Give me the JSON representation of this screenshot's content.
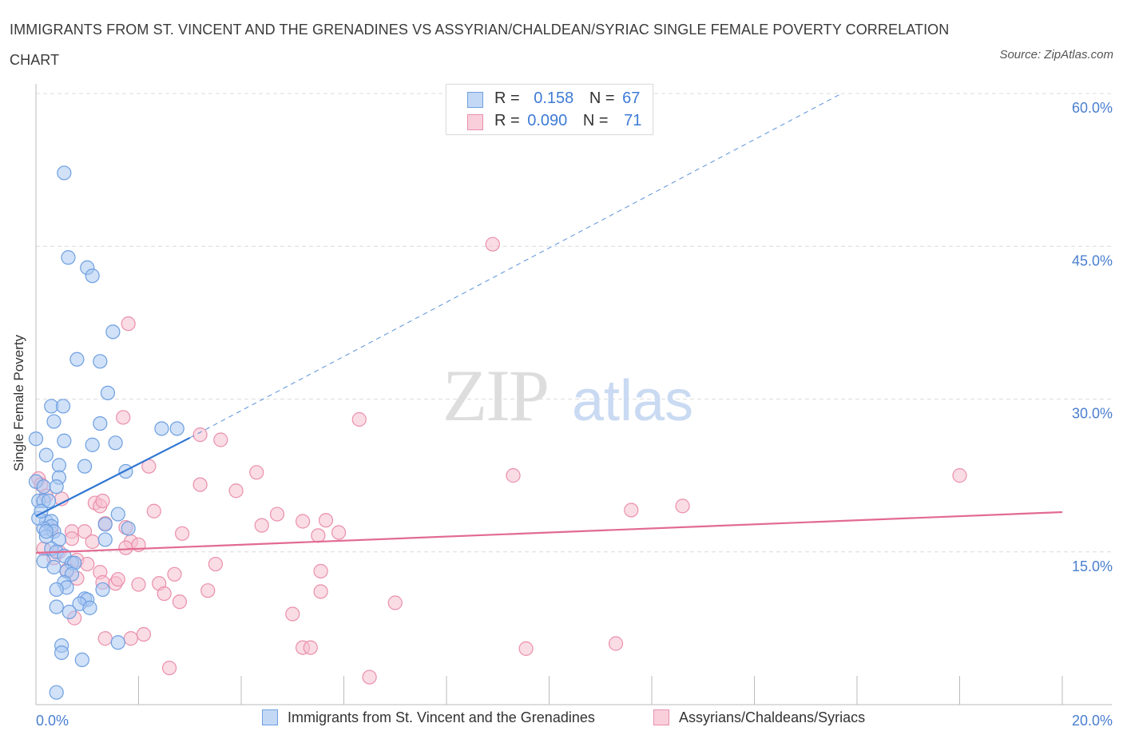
{
  "title": "IMMIGRANTS FROM ST. VINCENT AND THE GRENADINES VS ASSYRIAN/CHALDEAN/SYRIAC SINGLE FEMALE POVERTY CORRELATION CHART",
  "source": "Source: ZipAtlas.com",
  "watermark": {
    "zip": "ZIP",
    "atlas": "atlas"
  },
  "colors": {
    "blue_fill": "#aac8f2",
    "blue_stroke": "#6e9fe0",
    "blue_line": "#2f76d2",
    "pink_fill": "#f6bfd0",
    "pink_stroke": "#ea8fab",
    "pink_line": "#e26a93",
    "grid": "#dcdcdc",
    "tick_label": "#4a7fd0"
  },
  "legend_top": {
    "rows": [
      {
        "r_label": "R =",
        "r_value": "0.158",
        "n_label": "N =",
        "n_value": "67"
      },
      {
        "r_label": "R =",
        "r_value": "0.090",
        "n_label": "N =",
        "n_value": "71"
      }
    ]
  },
  "legend_bottom": [
    "Immigrants from St. Vincent and the Grenadines",
    "Assyrians/Chaldeans/Syriacs"
  ],
  "chart_data": {
    "type": "scatter",
    "title": "IMMIGRANTS FROM ST. VINCENT AND THE GRENADINES VS ASSYRIAN/CHALDEAN/SYRIAC SINGLE FEMALE POVERTY CORRELATION CHART",
    "xlabel": "",
    "ylabel": "Single Female Poverty",
    "xlim": [
      0,
      20
    ],
    "ylim": [
      0,
      60
    ],
    "x_tick_labels": [
      "0.0%",
      "20.0%"
    ],
    "y_ticks": [
      15,
      30,
      45,
      60
    ],
    "y_tick_labels": [
      "15.0%",
      "30.0%",
      "45.0%",
      "60.0%"
    ],
    "grid": true,
    "legend_position": "top-center",
    "series": [
      {
        "name": "Immigrants from St. Vincent and the Grenadines",
        "color": "#aac8f2",
        "r": 0.158,
        "n": 67,
        "trend": {
          "x0": 0.0,
          "y0": 18.5,
          "x1": 3.0,
          "y1": 26.2,
          "dashed_to_x": 15.7,
          "dashed_to_y": 60.0
        },
        "points": [
          [
            0.55,
            52.2
          ],
          [
            0.63,
            43.9
          ],
          [
            1.0,
            42.9
          ],
          [
            1.1,
            42.1
          ],
          [
            1.5,
            36.6
          ],
          [
            0.8,
            33.9
          ],
          [
            1.25,
            33.7
          ],
          [
            1.4,
            30.6
          ],
          [
            0.3,
            29.3
          ],
          [
            0.53,
            29.3
          ],
          [
            0.35,
            27.8
          ],
          [
            1.25,
            27.6
          ],
          [
            2.45,
            27.1
          ],
          [
            2.75,
            27.1
          ],
          [
            0.0,
            26.1
          ],
          [
            0.55,
            25.9
          ],
          [
            1.1,
            25.5
          ],
          [
            1.55,
            25.7
          ],
          [
            0.2,
            24.5
          ],
          [
            0.45,
            23.5
          ],
          [
            0.95,
            23.4
          ],
          [
            1.75,
            22.9
          ],
          [
            0.0,
            21.9
          ],
          [
            0.45,
            22.3
          ],
          [
            0.15,
            21.4
          ],
          [
            0.4,
            21.4
          ],
          [
            0.05,
            20.0
          ],
          [
            0.15,
            20.0
          ],
          [
            0.25,
            20.0
          ],
          [
            1.6,
            18.7
          ],
          [
            0.2,
            18.0
          ],
          [
            0.3,
            18.0
          ],
          [
            0.3,
            17.5
          ],
          [
            1.35,
            17.7
          ],
          [
            0.15,
            17.3
          ],
          [
            0.35,
            17.0
          ],
          [
            1.8,
            17.3
          ],
          [
            0.2,
            16.5
          ],
          [
            0.45,
            16.2
          ],
          [
            1.35,
            16.2
          ],
          [
            0.3,
            15.3
          ],
          [
            0.4,
            15.0
          ],
          [
            0.55,
            14.6
          ],
          [
            0.15,
            14.1
          ],
          [
            0.7,
            13.9
          ],
          [
            0.75,
            13.9
          ],
          [
            0.35,
            13.5
          ],
          [
            0.6,
            13.1
          ],
          [
            0.7,
            12.8
          ],
          [
            0.55,
            12.0
          ],
          [
            0.6,
            11.5
          ],
          [
            0.4,
            11.3
          ],
          [
            1.3,
            11.3
          ],
          [
            0.95,
            10.4
          ],
          [
            1.0,
            10.3
          ],
          [
            0.85,
            9.9
          ],
          [
            1.05,
            9.5
          ],
          [
            0.4,
            9.6
          ],
          [
            0.65,
            9.1
          ],
          [
            1.6,
            6.1
          ],
          [
            0.5,
            5.8
          ],
          [
            0.5,
            5.1
          ],
          [
            0.9,
            4.4
          ],
          [
            0.4,
            1.2
          ],
          [
            0.05,
            18.3
          ],
          [
            0.1,
            19.0
          ],
          [
            0.2,
            17.0
          ]
        ]
      },
      {
        "name": "Assyrians/Chaldeans/Syriacs",
        "color": "#f6bfd0",
        "r": 0.09,
        "n": 71,
        "trend": {
          "x0": 0.0,
          "y0": 14.9,
          "x1": 20.0,
          "y1": 18.9
        },
        "points": [
          [
            8.9,
            45.2
          ],
          [
            1.8,
            37.4
          ],
          [
            1.7,
            28.2
          ],
          [
            6.3,
            28.0
          ],
          [
            3.2,
            26.5
          ],
          [
            3.6,
            26.0
          ],
          [
            2.2,
            23.4
          ],
          [
            4.3,
            22.8
          ],
          [
            9.3,
            22.5
          ],
          [
            18.0,
            22.5
          ],
          [
            0.05,
            22.2
          ],
          [
            0.1,
            21.6
          ],
          [
            3.2,
            21.6
          ],
          [
            3.9,
            21.0
          ],
          [
            0.2,
            20.5
          ],
          [
            0.5,
            20.2
          ],
          [
            1.15,
            19.8
          ],
          [
            1.25,
            19.5
          ],
          [
            1.3,
            20.0
          ],
          [
            2.3,
            19.0
          ],
          [
            11.6,
            19.1
          ],
          [
            12.6,
            19.5
          ],
          [
            4.7,
            18.7
          ],
          [
            5.2,
            18.0
          ],
          [
            5.65,
            18.1
          ],
          [
            1.35,
            17.8
          ],
          [
            1.75,
            17.4
          ],
          [
            4.4,
            17.6
          ],
          [
            0.3,
            17.2
          ],
          [
            0.7,
            17.0
          ],
          [
            0.95,
            17.0
          ],
          [
            2.85,
            16.8
          ],
          [
            5.5,
            16.6
          ],
          [
            5.9,
            16.9
          ],
          [
            0.7,
            16.3
          ],
          [
            1.1,
            16.0
          ],
          [
            1.85,
            16.0
          ],
          [
            1.75,
            15.4
          ],
          [
            2.0,
            15.7
          ],
          [
            0.15,
            15.3
          ],
          [
            0.45,
            15.0
          ],
          [
            0.35,
            14.4
          ],
          [
            0.8,
            14.2
          ],
          [
            1.0,
            13.8
          ],
          [
            3.5,
            13.8
          ],
          [
            0.6,
            13.2
          ],
          [
            1.25,
            13.0
          ],
          [
            2.7,
            12.8
          ],
          [
            5.55,
            13.1
          ],
          [
            0.8,
            12.4
          ],
          [
            1.3,
            12.0
          ],
          [
            1.55,
            11.9
          ],
          [
            1.6,
            12.3
          ],
          [
            2.0,
            11.8
          ],
          [
            2.4,
            11.9
          ],
          [
            3.35,
            11.2
          ],
          [
            5.55,
            11.1
          ],
          [
            2.5,
            10.9
          ],
          [
            2.8,
            10.1
          ],
          [
            7.0,
            10.0
          ],
          [
            5.0,
            8.9
          ],
          [
            0.75,
            8.5
          ],
          [
            1.35,
            6.5
          ],
          [
            1.85,
            6.5
          ],
          [
            2.1,
            6.9
          ],
          [
            5.2,
            5.6
          ],
          [
            5.35,
            5.6
          ],
          [
            9.55,
            5.5
          ],
          [
            11.3,
            6.0
          ],
          [
            2.6,
            3.6
          ],
          [
            6.5,
            2.7
          ]
        ]
      }
    ]
  }
}
